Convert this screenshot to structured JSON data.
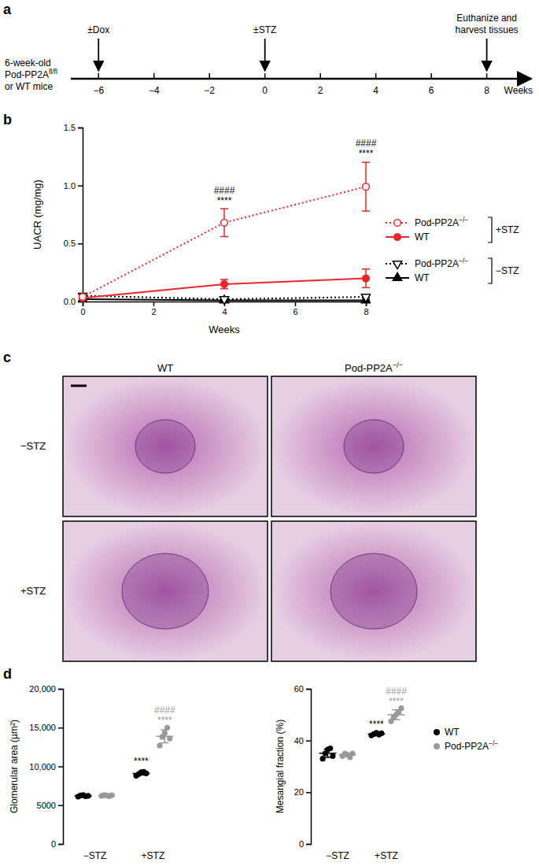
{
  "chart_data": [
    {
      "type": "timeline",
      "title": "a",
      "start_label": [
        "6-week-old",
        "Pod-PP2Afl/fl",
        "or WT mice"
      ],
      "xlabel": "Weeks",
      "xlim": [
        -7,
        9.6
      ],
      "xticks": [
        {
          "value": -6,
          "label": "−6"
        },
        {
          "value": -4,
          "label": "−4"
        },
        {
          "value": -2,
          "label": "−2"
        },
        0,
        2,
        4,
        6,
        8
      ],
      "annotations": [
        {
          "x": -6,
          "text": [
            "±Dox"
          ]
        },
        {
          "x": 0,
          "text": [
            "±STZ"
          ]
        },
        {
          "x": 8,
          "text": [
            "Euthanize and",
            "harvest tissues"
          ]
        }
      ]
    },
    {
      "type": "line",
      "title": "b",
      "xlabel": "Weeks",
      "ylabel": "UACR (mg/mg)",
      "x": [
        0,
        4,
        8
      ],
      "xlim": [
        0,
        8
      ],
      "xticks": [
        0,
        2,
        4,
        6,
        8
      ],
      "ylim": [
        0,
        1.5
      ],
      "yticks": [
        {
          "value": 0,
          "label": "0.0"
        },
        {
          "value": 0.5,
          "label": "0.5"
        },
        {
          "value": 1,
          "label": "1.0"
        },
        {
          "value": 1.5,
          "label": "1.5"
        }
      ],
      "legend": "right",
      "series": [
        {
          "name": "Pod-PP2A−/−",
          "group": "+STZ",
          "color": "#e8262b",
          "marker": "circle-open",
          "line_style": "dotted",
          "values": [
            0.04,
            0.68,
            0.99
          ],
          "errors": [
            0.02,
            0.12,
            0.21
          ]
        },
        {
          "name": "WT",
          "group": "+STZ",
          "color": "#e8262b",
          "marker": "circle",
          "line_style": "solid",
          "values": [
            0.03,
            0.15,
            0.2
          ],
          "errors": [
            0.01,
            0.04,
            0.08
          ]
        },
        {
          "name": "Pod-PP2A−/−",
          "group": "−STZ",
          "color": "#000000",
          "marker": "triangle-down-open",
          "line_style": "dotted",
          "values": [
            0.05,
            0.02,
            0.04
          ],
          "errors": [
            0.01,
            0.01,
            0.01
          ]
        },
        {
          "name": "WT",
          "group": "−STZ",
          "color": "#000000",
          "marker": "triangle",
          "line_style": "solid",
          "values": [
            0.02,
            0.01,
            0.01
          ],
          "errors": [
            0.01,
            0.005,
            0.005
          ]
        }
      ],
      "annotations": [
        {
          "x": 4,
          "y": 0.84,
          "text": "****"
        },
        {
          "x": 4,
          "y": 0.93,
          "text": "####"
        },
        {
          "x": 8,
          "y": 1.25,
          "text": "****"
        },
        {
          "x": 8,
          "y": 1.34,
          "text": "####"
        }
      ]
    },
    {
      "type": "image_grid",
      "title": "c",
      "columns": [
        "WT",
        "Pod-PP2A−/−"
      ],
      "rows": [
        "−STZ",
        "+STZ"
      ]
    },
    {
      "type": "dot",
      "title": "d",
      "ylabel": "Glomerular area (µm²)",
      "categories": [
        "−STZ",
        "+STZ"
      ],
      "ylim": [
        0,
        20000
      ],
      "yticks": [
        0,
        5000,
        {
          "value": 10000,
          "label": "10,000"
        },
        {
          "value": 15000,
          "label": "15,000"
        },
        {
          "value": 20000,
          "label": "20,000"
        }
      ],
      "series": [
        {
          "name": "WT",
          "color": "#000000",
          "points": [
            [
              6100,
              6250,
              6300,
              6150,
              6200
            ],
            [
              8800,
              9000,
              9250,
              9300,
              9100
            ]
          ],
          "mean": [
            6200,
            9090
          ],
          "sd": [
            80,
            200
          ],
          "annotations": [
            {
              "x": 1,
              "y": 10300,
              "text": "****"
            }
          ]
        },
        {
          "name": "Pod-PP2A−/−",
          "color": "#999999",
          "points": [
            [
              6200,
              6300,
              6250,
              6150,
              6280
            ],
            [
              12700,
              13800,
              14300,
              15000,
              13600
            ]
          ],
          "mean": [
            6236,
            13880
          ],
          "sd": [
            60,
            840
          ],
          "annotations": [
            {
              "x": 1,
              "y": 15500,
              "text": "****"
            },
            {
              "x": 1,
              "y": 16900,
              "text": "####"
            }
          ]
        }
      ]
    },
    {
      "type": "dot",
      "ylabel": "Mesangial fraction (%)",
      "categories": [
        "−STZ",
        "+STZ"
      ],
      "ylim": [
        0,
        60
      ],
      "yticks": [
        0,
        20,
        40,
        60
      ],
      "legend": "right",
      "series": [
        {
          "name": "WT",
          "color": "#000000",
          "points": [
            [
              33,
              35,
              36.5,
              37,
              34
            ],
            [
              42,
              42.5,
              43,
              42.3,
              42.8
            ]
          ],
          "mean": [
            35.1,
            42.5
          ],
          "sd": [
            1.6,
            0.4
          ],
          "annotations": [
            {
              "x": 1,
              "y": 45,
              "text": "****"
            }
          ]
        },
        {
          "name": "Pod-PP2A−/−",
          "color": "#999999",
          "points": [
            [
              34,
              35,
              34.5,
              33.5,
              35
            ],
            [
              47.5,
              49,
              50,
              51,
              52.5
            ]
          ],
          "mean": [
            34.4,
            50
          ],
          "sd": [
            0.6,
            1.9
          ],
          "annotations": [
            {
              "x": 1,
              "y": 54,
              "text": "****"
            },
            {
              "x": 1,
              "y": 58,
              "text": "####"
            }
          ]
        }
      ]
    }
  ]
}
